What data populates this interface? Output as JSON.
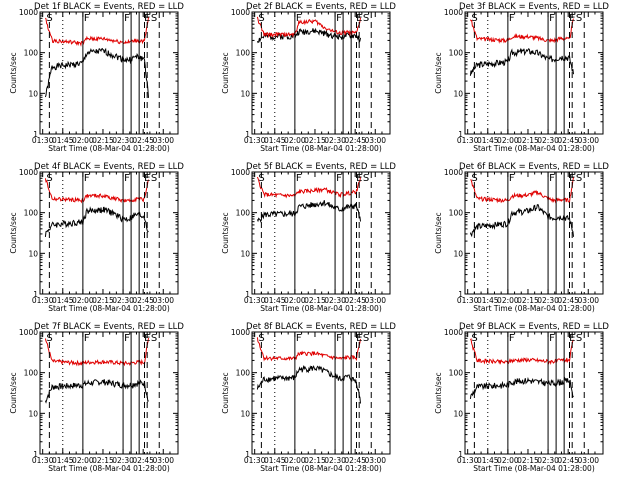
{
  "figure": {
    "panel_xlabel": "Start Time (08-Mar-04 01:28:00)",
    "panel_ylabel": "Counts/sec"
  },
  "chart_data": [
    {
      "type": "line",
      "title": "Det 1f BLACK = Events, RED = LLD",
      "xlabel": "Start Time (08-Mar-04 01:28:00)",
      "ylabel": "Counts/sec",
      "y_scale": "log",
      "ylim": [
        1,
        1000
      ],
      "y_ticks": [
        "1",
        "10",
        "100",
        "1000"
      ],
      "x_ticks": [
        "01:30",
        "01:45",
        "02:00",
        "02:15",
        "02:30",
        "02:45",
        "03:00"
      ],
      "x_minutes_after_0130": [
        0,
        15,
        30,
        45,
        60,
        75,
        90
      ],
      "markers": [
        "S",
        "F",
        "F",
        "E",
        "S"
      ],
      "series": [
        {
          "name": "Events",
          "color": "#000000",
          "level_x": [
            2,
            7,
            30,
            33,
            45,
            52,
            60,
            64,
            70,
            76,
            79
          ],
          "level_y": [
            8,
            45,
            55,
            100,
            110,
            90,
            70,
            65,
            80,
            70,
            8
          ]
        },
        {
          "name": "LLD",
          "color": "#e00000",
          "level_x": [
            2,
            7,
            30,
            33,
            45,
            52,
            60,
            64,
            70,
            76,
            79
          ],
          "level_y": [
            700,
            200,
            170,
            220,
            220,
            200,
            180,
            180,
            200,
            190,
            700
          ]
        }
      ]
    },
    {
      "type": "line",
      "title": "Det 2f BLACK = Events, RED = LLD",
      "xlabel": "Start Time (08-Mar-04 01:28:00)",
      "ylabel": "Counts/sec",
      "y_scale": "log",
      "ylim": [
        1,
        1000
      ],
      "y_ticks": [
        "1",
        "10",
        "100",
        "1000"
      ],
      "x_ticks": [
        "01:30",
        "01:45",
        "02:00",
        "02:15",
        "02:30",
        "02:45",
        "03:00"
      ],
      "x_minutes_after_0130": [
        0,
        15,
        30,
        45,
        60,
        75,
        90
      ],
      "markers": [
        "S",
        "F",
        "F",
        "E",
        "S"
      ],
      "series": [
        {
          "name": "Events",
          "color": "#000000",
          "level_x": [
            2,
            7,
            30,
            33,
            45,
            52,
            60,
            64,
            70,
            76,
            79
          ],
          "level_y": [
            200,
            250,
            260,
            330,
            340,
            300,
            260,
            250,
            260,
            260,
            200
          ]
        },
        {
          "name": "LLD",
          "color": "#e00000",
          "level_x": [
            2,
            7,
            30,
            33,
            45,
            52,
            60,
            64,
            70,
            76,
            79
          ],
          "level_y": [
            700,
            280,
            280,
            560,
            600,
            420,
            320,
            300,
            320,
            300,
            700
          ]
        }
      ]
    },
    {
      "type": "line",
      "title": "Det 3f BLACK = Events, RED = LLD",
      "xlabel": "Start Time (08-Mar-04 01:28:00)",
      "ylabel": "Counts/sec",
      "y_scale": "log",
      "ylim": [
        1,
        1000
      ],
      "y_ticks": [
        "1",
        "10",
        "100",
        "1000"
      ],
      "x_ticks": [
        "01:30",
        "01:45",
        "02:00",
        "02:15",
        "02:30",
        "02:45",
        "03:00"
      ],
      "x_minutes_after_0130": [
        0,
        15,
        30,
        45,
        60,
        75,
        90
      ],
      "markers": [
        "S",
        "F",
        "F",
        "E",
        "S"
      ],
      "series": [
        {
          "name": "Events",
          "color": "#000000",
          "level_x": [
            2,
            7,
            30,
            33,
            45,
            52,
            60,
            64,
            70,
            76,
            79
          ],
          "level_y": [
            30,
            50,
            60,
            100,
            110,
            100,
            70,
            70,
            80,
            75,
            30
          ]
        },
        {
          "name": "LLD",
          "color": "#e00000",
          "level_x": [
            2,
            7,
            30,
            33,
            45,
            52,
            60,
            64,
            70,
            76,
            79
          ],
          "level_y": [
            700,
            220,
            200,
            250,
            250,
            230,
            200,
            200,
            230,
            210,
            700
          ]
        }
      ]
    },
    {
      "type": "line",
      "title": "Det 4f BLACK = Events, RED = LLD",
      "xlabel": "Start Time (08-Mar-04 01:28:00)",
      "ylabel": "Counts/sec",
      "y_scale": "log",
      "ylim": [
        1,
        1000
      ],
      "y_ticks": [
        "1",
        "10",
        "100",
        "1000"
      ],
      "x_ticks": [
        "01:30",
        "01:45",
        "02:00",
        "02:15",
        "02:30",
        "02:45",
        "03:00"
      ],
      "x_minutes_after_0130": [
        0,
        15,
        30,
        45,
        60,
        75,
        90
      ],
      "markers": [
        "S",
        "F",
        "F",
        "E",
        "S"
      ],
      "series": [
        {
          "name": "Events",
          "color": "#000000",
          "level_x": [
            2,
            7,
            30,
            33,
            45,
            52,
            60,
            64,
            70,
            76,
            79
          ],
          "level_y": [
            30,
            50,
            60,
            110,
            120,
            100,
            70,
            70,
            90,
            80,
            30
          ]
        },
        {
          "name": "LLD",
          "color": "#e00000",
          "level_x": [
            2,
            7,
            30,
            33,
            45,
            52,
            60,
            64,
            70,
            76,
            79
          ],
          "level_y": [
            700,
            220,
            200,
            260,
            260,
            230,
            200,
            190,
            220,
            210,
            700
          ]
        }
      ]
    },
    {
      "type": "line",
      "title": "Det 5f BLACK = Events, RED = LLD",
      "xlabel": "Start Time (08-Mar-04 01:28:00)",
      "ylabel": "Counts/sec",
      "y_scale": "log",
      "ylim": [
        1,
        1000
      ],
      "y_ticks": [
        "1",
        "10",
        "100",
        "1000"
      ],
      "x_ticks": [
        "01:30",
        "01:45",
        "02:00",
        "02:15",
        "02:30",
        "02:45",
        "03:00"
      ],
      "x_minutes_after_0130": [
        0,
        15,
        30,
        45,
        60,
        75,
        90
      ],
      "markers": [
        "S",
        "F",
        "F",
        "E",
        "S"
      ],
      "series": [
        {
          "name": "Events",
          "color": "#000000",
          "level_x": [
            2,
            7,
            30,
            33,
            45,
            52,
            60,
            64,
            70,
            76,
            79
          ],
          "level_y": [
            60,
            90,
            95,
            140,
            160,
            180,
            130,
            120,
            140,
            150,
            60
          ]
        },
        {
          "name": "LLD",
          "color": "#e00000",
          "level_x": [
            2,
            7,
            30,
            33,
            45,
            52,
            60,
            64,
            70,
            76,
            79
          ],
          "level_y": [
            700,
            280,
            260,
            330,
            350,
            380,
            300,
            280,
            300,
            330,
            700
          ]
        }
      ]
    },
    {
      "type": "line",
      "title": "Det 6f BLACK = Events, RED = LLD",
      "xlabel": "Start Time (08-Mar-04 01:28:00)",
      "ylabel": "Counts/sec",
      "y_scale": "log",
      "ylim": [
        1,
        1000
      ],
      "y_ticks": [
        "1",
        "10",
        "100",
        "1000"
      ],
      "x_ticks": [
        "01:30",
        "01:45",
        "02:00",
        "02:15",
        "02:30",
        "02:45",
        "03:00"
      ],
      "x_minutes_after_0130": [
        0,
        15,
        30,
        45,
        60,
        75,
        90
      ],
      "markers": [
        "S",
        "F",
        "F",
        "E",
        "S"
      ],
      "series": [
        {
          "name": "Events",
          "color": "#000000",
          "level_x": [
            2,
            7,
            30,
            33,
            45,
            52,
            60,
            64,
            70,
            76,
            79
          ],
          "level_y": [
            30,
            45,
            55,
            100,
            110,
            140,
            80,
            75,
            80,
            70,
            30
          ]
        },
        {
          "name": "LLD",
          "color": "#e00000",
          "level_x": [
            2,
            7,
            30,
            33,
            45,
            52,
            60,
            64,
            70,
            76,
            79
          ],
          "level_y": [
            700,
            220,
            200,
            260,
            270,
            320,
            220,
            200,
            210,
            200,
            700
          ]
        }
      ]
    },
    {
      "type": "line",
      "title": "Det 7f BLACK = Events, RED = LLD",
      "xlabel": "Start Time (08-Mar-04 01:28:00)",
      "ylabel": "Counts/sec",
      "y_scale": "log",
      "ylim": [
        1,
        1000
      ],
      "y_ticks": [
        "1",
        "10",
        "100",
        "1000"
      ],
      "x_ticks": [
        "01:30",
        "01:45",
        "02:00",
        "02:15",
        "02:30",
        "02:45",
        "03:00"
      ],
      "x_minutes_after_0130": [
        0,
        15,
        30,
        45,
        60,
        75,
        90
      ],
      "markers": [
        "S",
        "F",
        "F",
        "E",
        "S"
      ],
      "series": [
        {
          "name": "Events",
          "color": "#000000",
          "level_x": [
            2,
            7,
            30,
            33,
            45,
            52,
            60,
            64,
            70,
            76,
            79
          ],
          "level_y": [
            20,
            45,
            50,
            55,
            60,
            55,
            50,
            50,
            55,
            55,
            20
          ]
        },
        {
          "name": "LLD",
          "color": "#e00000",
          "level_x": [
            2,
            7,
            30,
            33,
            45,
            52,
            60,
            64,
            70,
            76,
            79
          ],
          "level_y": [
            700,
            190,
            170,
            180,
            185,
            180,
            170,
            170,
            180,
            180,
            700
          ]
        }
      ]
    },
    {
      "type": "line",
      "title": "Det 8f BLACK = Events, RED = LLD",
      "xlabel": "Start Time (08-Mar-04 01:28:00)",
      "ylabel": "Counts/sec",
      "y_scale": "log",
      "ylim": [
        1,
        1000
      ],
      "y_ticks": [
        "1",
        "10",
        "100",
        "1000"
      ],
      "x_ticks": [
        "01:30",
        "01:45",
        "02:00",
        "02:15",
        "02:30",
        "02:45",
        "03:00"
      ],
      "x_minutes_after_0130": [
        0,
        15,
        30,
        45,
        60,
        75,
        90
      ],
      "markers": [
        "S",
        "F",
        "F",
        "E",
        "S"
      ],
      "series": [
        {
          "name": "Events",
          "color": "#000000",
          "level_x": [
            2,
            7,
            30,
            33,
            45,
            52,
            60,
            64,
            70,
            76,
            79
          ],
          "level_y": [
            40,
            70,
            75,
            120,
            130,
            110,
            80,
            70,
            80,
            60,
            20
          ]
        },
        {
          "name": "LLD",
          "color": "#e00000",
          "level_x": [
            2,
            7,
            30,
            33,
            45,
            52,
            60,
            64,
            70,
            76,
            79
          ],
          "level_y": [
            700,
            230,
            220,
            290,
            300,
            260,
            230,
            220,
            240,
            230,
            700
          ]
        }
      ]
    },
    {
      "type": "line",
      "title": "Det 9f BLACK = Events, RED = LLD",
      "xlabel": "Start Time (08-Mar-04 01:28:00)",
      "ylabel": "Counts/sec",
      "y_scale": "log",
      "ylim": [
        1,
        1000
      ],
      "y_ticks": [
        "1",
        "10",
        "100",
        "1000"
      ],
      "x_ticks": [
        "01:30",
        "01:45",
        "02:00",
        "02:15",
        "02:30",
        "02:45",
        "03:00"
      ],
      "x_minutes_after_0130": [
        0,
        15,
        30,
        45,
        60,
        75,
        90
      ],
      "markers": [
        "S",
        "F",
        "F",
        "E",
        "S"
      ],
      "series": [
        {
          "name": "Events",
          "color": "#000000",
          "level_x": [
            2,
            7,
            30,
            33,
            45,
            52,
            60,
            64,
            70,
            76,
            79
          ],
          "level_y": [
            25,
            45,
            50,
            60,
            65,
            60,
            55,
            55,
            60,
            65,
            25
          ]
        },
        {
          "name": "LLD",
          "color": "#e00000",
          "level_x": [
            2,
            7,
            30,
            33,
            45,
            52,
            60,
            64,
            70,
            76,
            79
          ],
          "level_y": [
            700,
            200,
            180,
            200,
            210,
            200,
            190,
            190,
            200,
            210,
            700
          ]
        }
      ]
    }
  ]
}
